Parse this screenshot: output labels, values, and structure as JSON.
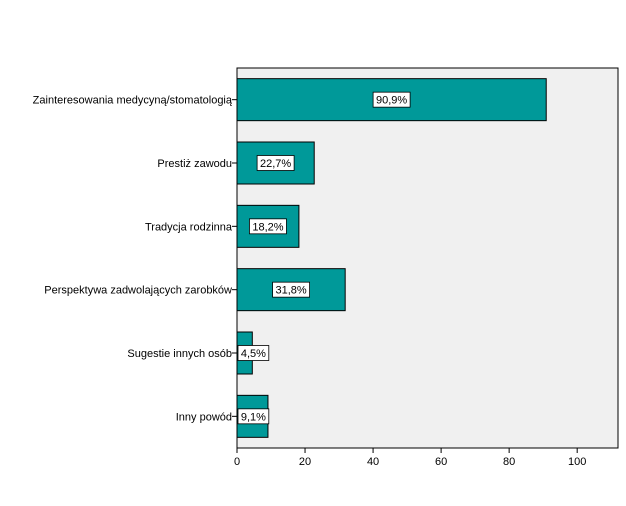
{
  "chart_data": {
    "type": "bar",
    "orientation": "horizontal",
    "categories": [
      "Zainteresowania medycyną/stomatologią",
      "Prestiż zawodu",
      "Tradycja rodzinna",
      "Perspektywa zadwolających zarobków",
      "Sugestie innych osób",
      "Inny powód"
    ],
    "values": [
      90.9,
      22.7,
      18.2,
      31.8,
      4.5,
      9.1
    ],
    "value_labels": [
      "90,9%",
      "22,7%",
      "18,2%",
      "31,8%",
      "4,5%",
      "9,1%"
    ],
    "xlim": [
      0,
      112
    ],
    "xticks": [
      0,
      20,
      40,
      60,
      80,
      100
    ],
    "xtick_labels": [
      "0",
      "20",
      "40",
      "60",
      "80",
      "100"
    ],
    "bar_color": "#009999",
    "background_color": "#f0f0f0",
    "grid": false,
    "title": "",
    "xlabel": "",
    "ylabel": ""
  }
}
